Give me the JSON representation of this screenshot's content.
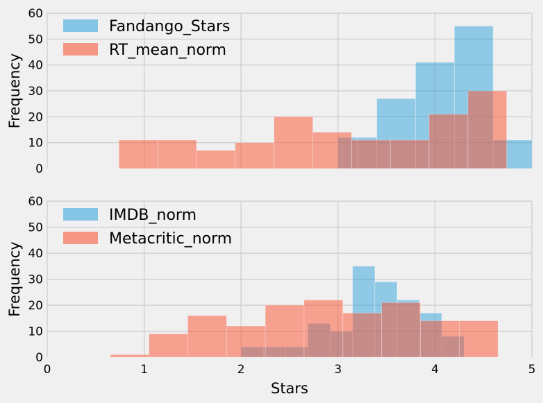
{
  "chart_data": [
    {
      "type": "histogram",
      "ylabel": "Frequency",
      "xlim": [
        0,
        5
      ],
      "ylim": [
        0,
        60
      ],
      "x_ticks": [
        "",
        "",
        "",
        "",
        "",
        ""
      ],
      "y_ticks": [
        "0",
        "10",
        "20",
        "30",
        "40",
        "50",
        "60"
      ],
      "grid": true,
      "legend_position": "upper-left",
      "series": [
        {
          "name": "Fandango_Stars",
          "color": "#008fd5",
          "opacity": 0.4,
          "bins": [
            {
              "x0": 3.0,
              "x1": 3.2,
              "count": 12
            },
            {
              "x0": 3.2,
              "x1": 3.4,
              "count": 12
            },
            {
              "x0": 3.4,
              "x1": 3.8,
              "count": 27
            },
            {
              "x0": 3.8,
              "x1": 4.2,
              "count": 41
            },
            {
              "x0": 4.2,
              "x1": 4.6,
              "count": 55
            },
            {
              "x0": 4.6,
              "x1": 5.0,
              "count": 11
            }
          ]
        },
        {
          "name": "RT_mean_norm",
          "color": "#fc4f30",
          "opacity": 0.5,
          "bins": [
            {
              "x0": 0.74,
              "x1": 1.14,
              "count": 11
            },
            {
              "x0": 1.14,
              "x1": 1.54,
              "count": 11
            },
            {
              "x0": 1.54,
              "x1": 1.94,
              "count": 7
            },
            {
              "x0": 1.94,
              "x1": 2.34,
              "count": 10
            },
            {
              "x0": 2.34,
              "x1": 2.74,
              "count": 20
            },
            {
              "x0": 2.74,
              "x1": 3.14,
              "count": 14
            },
            {
              "x0": 3.14,
              "x1": 3.54,
              "count": 11
            },
            {
              "x0": 3.54,
              "x1": 3.94,
              "count": 11
            },
            {
              "x0": 3.94,
              "x1": 4.34,
              "count": 21
            },
            {
              "x0": 4.34,
              "x1": 4.74,
              "count": 30
            }
          ]
        }
      ]
    },
    {
      "type": "histogram",
      "xlabel": "Stars",
      "ylabel": "Frequency",
      "xlim": [
        0,
        5
      ],
      "ylim": [
        0,
        60
      ],
      "x_ticks": [
        "0",
        "1",
        "2",
        "3",
        "4",
        "5"
      ],
      "y_ticks": [
        "0",
        "10",
        "20",
        "30",
        "40",
        "50",
        "60"
      ],
      "grid": true,
      "legend_position": "upper-left",
      "series": [
        {
          "name": "IMDB_norm",
          "color": "#008fd5",
          "opacity": 0.4,
          "bins": [
            {
              "x0": 2.0,
              "x1": 2.23,
              "count": 4
            },
            {
              "x0": 2.23,
              "x1": 2.46,
              "count": 4
            },
            {
              "x0": 2.46,
              "x1": 2.69,
              "count": 4
            },
            {
              "x0": 2.69,
              "x1": 2.92,
              "count": 13
            },
            {
              "x0": 2.92,
              "x1": 3.15,
              "count": 10
            },
            {
              "x0": 3.15,
              "x1": 3.38,
              "count": 35
            },
            {
              "x0": 3.38,
              "x1": 3.61,
              "count": 29
            },
            {
              "x0": 3.61,
              "x1": 3.84,
              "count": 22
            },
            {
              "x0": 3.84,
              "x1": 4.07,
              "count": 17
            },
            {
              "x0": 4.07,
              "x1": 4.3,
              "count": 8
            }
          ]
        },
        {
          "name": "Metacritic_norm",
          "color": "#fc4f30",
          "opacity": 0.5,
          "bins": [
            {
              "x0": 0.65,
              "x1": 1.05,
              "count": 1
            },
            {
              "x0": 1.05,
              "x1": 1.45,
              "count": 9
            },
            {
              "x0": 1.45,
              "x1": 1.85,
              "count": 16
            },
            {
              "x0": 1.85,
              "x1": 2.25,
              "count": 12
            },
            {
              "x0": 2.25,
              "x1": 2.65,
              "count": 20
            },
            {
              "x0": 2.65,
              "x1": 3.05,
              "count": 22
            },
            {
              "x0": 3.05,
              "x1": 3.45,
              "count": 17
            },
            {
              "x0": 3.45,
              "x1": 3.85,
              "count": 21
            },
            {
              "x0": 3.85,
              "x1": 4.25,
              "count": 14
            },
            {
              "x0": 4.25,
              "x1": 4.65,
              "count": 14
            }
          ]
        }
      ]
    }
  ]
}
